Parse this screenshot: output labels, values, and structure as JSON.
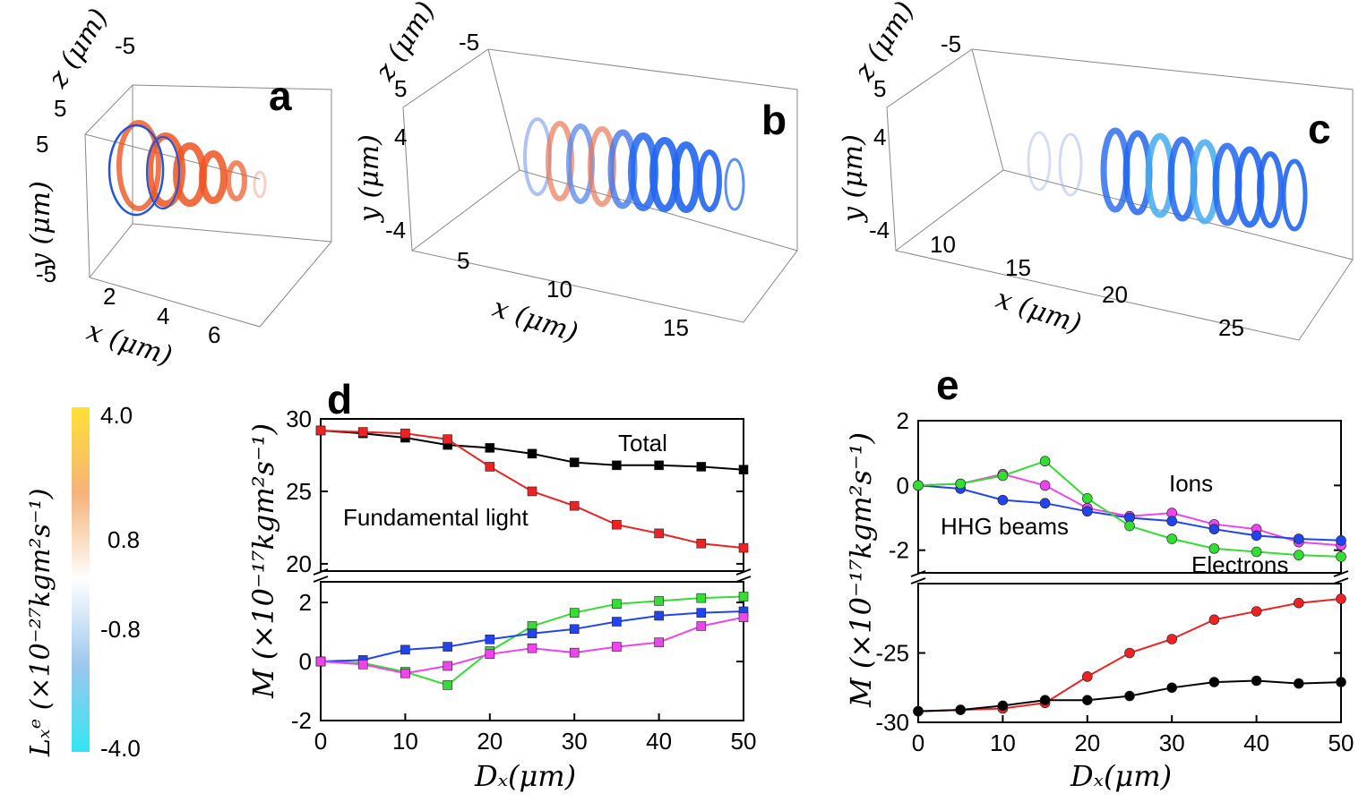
{
  "panels_3d": [
    {
      "label": "a",
      "x_label": "x (μm)",
      "y_label": "y (μm)",
      "z_label": "z (μm)",
      "x_ticks": [
        "2",
        "4",
        "6"
      ],
      "y_ticks": [
        "5",
        "-5"
      ],
      "z_ticks": [
        "5",
        "-5"
      ]
    },
    {
      "label": "b",
      "x_label": "x (μm)",
      "y_label": "y (μm)",
      "z_label": "z (μm)",
      "x_ticks": [
        "5",
        "10",
        "15"
      ],
      "y_ticks": [
        "4",
        "-4"
      ],
      "z_ticks": [
        "5",
        "-5"
      ]
    },
    {
      "label": "c",
      "x_label": "x (μm)",
      "y_label": "y (μm)",
      "z_label": "z (μm)",
      "x_ticks": [
        "10",
        "15",
        "20",
        "25"
      ],
      "y_ticks": [
        "4",
        "-4"
      ],
      "z_ticks": [
        "5",
        "-5"
      ]
    }
  ],
  "colorbar": {
    "label": "Lₓᵉ (×10⁻²⁷kgm²s⁻¹)",
    "ticks": [
      "4.0",
      "0.8",
      "-0.8",
      "-4.0"
    ],
    "colors": {
      "top": "#ffe033",
      "mid_high": "#f6a65a",
      "center": "#ffffff",
      "mid_low": "#a8c8ee",
      "bottom": "#33e6f2"
    }
  },
  "chart_data": [
    {
      "panel": "d",
      "type": "line",
      "marker": "square",
      "x": [
        0,
        5,
        10,
        15,
        20,
        25,
        30,
        35,
        40,
        45,
        50
      ],
      "xlabel": "Dₓ(μm)",
      "ylabel": "M (×10⁻¹⁷kgm²s⁻¹)",
      "xlim": [
        0,
        50
      ],
      "x_ticks": [
        "0",
        "10",
        "20",
        "30",
        "40",
        "50"
      ],
      "broken_axis": true,
      "upper": {
        "ylim": [
          19.5,
          30
        ],
        "y_ticks": [
          "30",
          "25",
          "20"
        ]
      },
      "lower": {
        "ylim": [
          -2,
          2.7
        ],
        "y_ticks": [
          "2",
          "0",
          "-2"
        ]
      },
      "series": [
        {
          "name": "Total",
          "color": "#000000",
          "segment": "upper",
          "values": [
            29.2,
            29.0,
            28.7,
            28.2,
            28.0,
            27.6,
            27.0,
            26.8,
            26.8,
            26.7,
            26.5
          ]
        },
        {
          "name": "Fundamental light",
          "color": "#ee2222",
          "segment": "upper",
          "values": [
            29.2,
            29.1,
            29.0,
            28.6,
            26.7,
            25.0,
            24.0,
            22.7,
            22.1,
            21.4,
            21.1
          ]
        },
        {
          "name": "Electrons",
          "color": "#33dd33",
          "segment": "lower",
          "values": [
            0.0,
            -0.05,
            -0.35,
            -0.8,
            0.35,
            1.2,
            1.65,
            1.95,
            2.05,
            2.15,
            2.2
          ]
        },
        {
          "name": "HHG beams",
          "color": "#2244ee",
          "segment": "lower",
          "values": [
            0.0,
            0.05,
            0.4,
            0.5,
            0.75,
            0.95,
            1.1,
            1.35,
            1.55,
            1.65,
            1.7
          ]
        },
        {
          "name": "Ions",
          "color": "#ee44ee",
          "segment": "lower",
          "values": [
            0.0,
            -0.1,
            -0.4,
            -0.15,
            0.25,
            0.45,
            0.3,
            0.5,
            0.65,
            1.2,
            1.5
          ]
        }
      ],
      "annotations": [
        {
          "text": "Total",
          "color": "#000000"
        },
        {
          "text": "Fundamental light",
          "color": "#ee2222"
        }
      ]
    },
    {
      "panel": "e",
      "type": "line",
      "marker": "circle",
      "x": [
        0,
        5,
        10,
        15,
        20,
        25,
        30,
        35,
        40,
        45,
        50
      ],
      "xlabel": "Dₓ(μm)",
      "ylabel": "M (×10⁻¹⁷kgm²s⁻¹)",
      "xlim": [
        0,
        50
      ],
      "x_ticks": [
        "0",
        "10",
        "20",
        "30",
        "40",
        "50"
      ],
      "broken_axis": true,
      "upper": {
        "ylim": [
          -2.7,
          2
        ],
        "y_ticks": [
          "2",
          "0",
          "-2"
        ]
      },
      "lower": {
        "ylim": [
          -30,
          -20
        ],
        "y_ticks": [
          "-25",
          "-30"
        ]
      },
      "series": [
        {
          "name": "Ions",
          "color": "#ee44ee",
          "segment": "upper",
          "values": [
            0.0,
            0.05,
            0.35,
            0.0,
            -0.7,
            -0.95,
            -0.85,
            -1.2,
            -1.35,
            -1.75,
            -1.85
          ]
        },
        {
          "name": "HHG beams",
          "color": "#2244ee",
          "segment": "upper",
          "values": [
            0.0,
            -0.1,
            -0.45,
            -0.55,
            -0.8,
            -1.0,
            -1.1,
            -1.35,
            -1.55,
            -1.65,
            -1.7
          ]
        },
        {
          "name": "Electrons",
          "color": "#33dd33",
          "segment": "upper",
          "values": [
            0.0,
            0.05,
            0.3,
            0.75,
            -0.4,
            -1.25,
            -1.65,
            -1.95,
            -2.05,
            -2.15,
            -2.2
          ]
        },
        {
          "name": "Fundamental",
          "color": "#ee2222",
          "segment": "lower",
          "values": [
            -29.2,
            -29.1,
            -29.0,
            -28.6,
            -26.7,
            -25.0,
            -24.0,
            -22.6,
            -22.0,
            -21.4,
            -21.1
          ]
        },
        {
          "name": "Total",
          "color": "#000000",
          "segment": "lower",
          "values": [
            -29.2,
            -29.1,
            -28.8,
            -28.4,
            -28.4,
            -28.1,
            -27.5,
            -27.1,
            -27.0,
            -27.2,
            -27.1
          ]
        }
      ],
      "annotations": [
        {
          "text": "Ions",
          "color": "#ee44ee"
        },
        {
          "text": "HHG beams",
          "color": "#2244ee"
        },
        {
          "text": "Electrons",
          "color": "#33dd33"
        }
      ]
    }
  ]
}
